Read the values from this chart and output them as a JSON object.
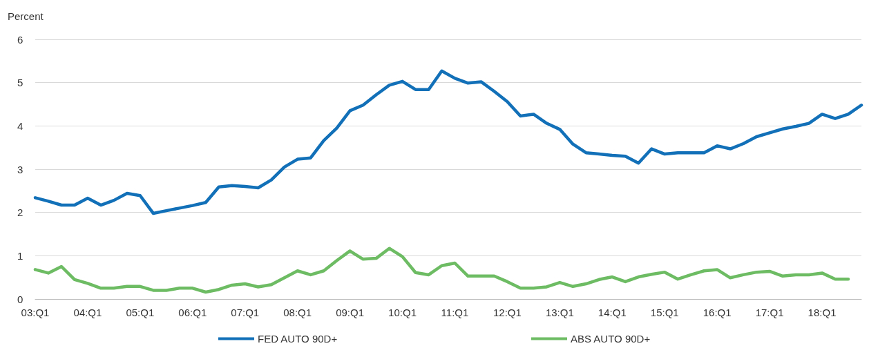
{
  "chart_data": {
    "type": "line",
    "ylabel": "Percent",
    "categories": [
      "03:Q1",
      null,
      null,
      null,
      "04:Q1",
      null,
      null,
      null,
      "05:Q1",
      null,
      null,
      null,
      "06:Q1",
      null,
      null,
      null,
      "07:Q1",
      null,
      null,
      null,
      "08:Q1",
      null,
      null,
      null,
      "09:Q1",
      null,
      null,
      null,
      "10:Q1",
      null,
      null,
      null,
      "11:Q1",
      null,
      null,
      null,
      "12:Q1",
      null,
      null,
      null,
      "13:Q1",
      null,
      null,
      null,
      "14:Q1",
      null,
      null,
      null,
      "15:Q1",
      null,
      null,
      null,
      "16:Q1",
      null,
      null,
      null,
      "17:Q1",
      null,
      null,
      null,
      "18:Q1",
      null,
      null,
      null
    ],
    "series": [
      {
        "name": "FED AUTO 90D+",
        "color": "#1170b8",
        "values": [
          2.34,
          2.26,
          2.17,
          2.17,
          2.33,
          2.17,
          2.28,
          2.44,
          2.39,
          1.98,
          2.04,
          2.1,
          2.16,
          2.23,
          2.59,
          2.62,
          2.6,
          2.57,
          2.75,
          3.05,
          3.23,
          3.26,
          3.66,
          3.95,
          4.35,
          4.48,
          4.72,
          4.94,
          5.03,
          4.84,
          4.84,
          5.27,
          5.1,
          4.99,
          5.02,
          4.8,
          4.56,
          4.23,
          4.27,
          4.06,
          3.92,
          3.58,
          3.38,
          3.35,
          3.32,
          3.3,
          3.14,
          3.47,
          3.35,
          3.38,
          3.38,
          3.38,
          3.54,
          3.47,
          3.59,
          3.75,
          3.84,
          3.93,
          3.99,
          4.06,
          4.27,
          4.17,
          4.27,
          4.48
        ]
      },
      {
        "name": "ABS AUTO 90D+",
        "color": "#6dbb63",
        "values": [
          0.68,
          0.6,
          0.75,
          0.45,
          0.36,
          0.25,
          0.25,
          0.29,
          0.29,
          0.2,
          0.2,
          0.25,
          0.25,
          0.16,
          0.22,
          0.32,
          0.35,
          0.28,
          0.33,
          0.49,
          0.65,
          0.56,
          0.65,
          0.89,
          1.11,
          0.92,
          0.94,
          1.17,
          0.98,
          0.61,
          0.56,
          0.77,
          0.83,
          0.53,
          0.53,
          0.53,
          0.4,
          0.25,
          0.25,
          0.28,
          0.38,
          0.29,
          0.35,
          0.45,
          0.51,
          0.4,
          0.51,
          0.57,
          0.62,
          0.46,
          0.56,
          0.65,
          0.68,
          0.49,
          0.56,
          0.62,
          0.64,
          0.53,
          0.56,
          0.56,
          0.6,
          0.46,
          0.46,
          null
        ]
      }
    ],
    "ylim": [
      0,
      6
    ],
    "yticks": [
      0,
      1,
      2,
      3,
      4,
      5,
      6
    ],
    "grid": "y",
    "legend": "bottom",
    "marker": "none",
    "line_style": "solid"
  }
}
